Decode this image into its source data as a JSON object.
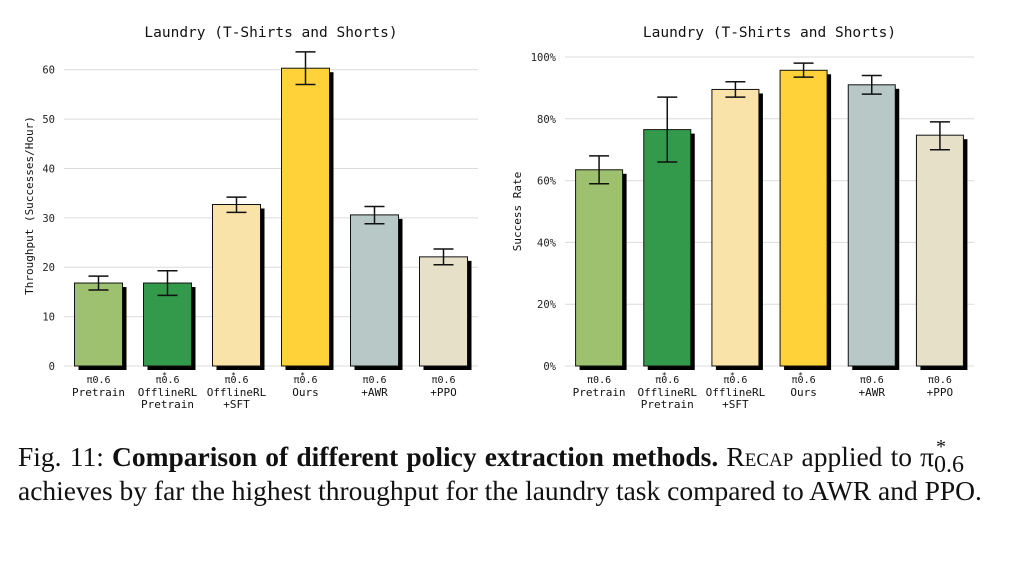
{
  "chart_data": [
    {
      "type": "bar",
      "title": "Laundry (T-Shirts and Shorts)",
      "xlabel": "",
      "ylabel": "Throughput (Successes/Hour)",
      "ylim": [
        0,
        65
      ],
      "yticks": [
        0,
        10,
        20,
        30,
        40,
        50,
        60
      ],
      "ytick_labels": [
        "0",
        "10",
        "20",
        "30",
        "40",
        "50",
        "60"
      ],
      "grid": true,
      "categories": [
        {
          "symbol": "π0.6",
          "star": false,
          "lines": [
            "Pretrain"
          ]
        },
        {
          "symbol": "π0.6",
          "star": true,
          "lines": [
            "OfflineRL",
            "Pretrain"
          ]
        },
        {
          "symbol": "π0.6",
          "star": true,
          "lines": [
            "OfflineRL",
            "+SFT"
          ]
        },
        {
          "symbol": "π0.6",
          "star": true,
          "lines": [
            "Ours"
          ]
        },
        {
          "symbol": "π0.6",
          "star": false,
          "lines": [
            "+AWR"
          ]
        },
        {
          "symbol": "π0.6",
          "star": false,
          "lines": [
            "+PPO"
          ]
        }
      ],
      "values": [
        16.8,
        16.8,
        32.7,
        60.3,
        30.6,
        22.1
      ],
      "err_low": [
        15.4,
        14.3,
        31.1,
        57.0,
        28.8,
        20.5
      ],
      "err_high": [
        18.2,
        19.3,
        34.2,
        63.6,
        32.3,
        23.7
      ],
      "colors": [
        "#9dc16f",
        "#339a4b",
        "#fae3a8",
        "#ffd23a",
        "#b7c8c6",
        "#e6e0c8"
      ]
    },
    {
      "type": "bar",
      "title": "Laundry (T-Shirts and Shorts)",
      "xlabel": "",
      "ylabel": "Success Rate",
      "ylim": [
        0,
        100
      ],
      "yticks": [
        0,
        20,
        40,
        60,
        80,
        100
      ],
      "ytick_labels": [
        "0%",
        "20%",
        "40%",
        "60%",
        "80%",
        "100%"
      ],
      "grid": true,
      "categories": [
        {
          "symbol": "π0.6",
          "star": false,
          "lines": [
            "Pretrain"
          ]
        },
        {
          "symbol": "π0.6",
          "star": true,
          "lines": [
            "OfflineRL",
            "Pretrain"
          ]
        },
        {
          "symbol": "π0.6",
          "star": true,
          "lines": [
            "OfflineRL",
            "+SFT"
          ]
        },
        {
          "symbol": "π0.6",
          "star": true,
          "lines": [
            "Ours"
          ]
        },
        {
          "symbol": "π0.6",
          "star": false,
          "lines": [
            "+AWR"
          ]
        },
        {
          "symbol": "π0.6",
          "star": false,
          "lines": [
            "+PPO"
          ]
        }
      ],
      "values": [
        63.5,
        76.5,
        89.5,
        95.7,
        91.0,
        74.7
      ],
      "err_low": [
        59.0,
        66.0,
        87.0,
        93.5,
        88.0,
        70.0
      ],
      "err_high": [
        68.0,
        87.0,
        92.0,
        98.0,
        94.0,
        79.0
      ],
      "colors": [
        "#9dc16f",
        "#339a4b",
        "#fae3a8",
        "#ffd23a",
        "#b7c8c6",
        "#e6e0c8"
      ]
    }
  ],
  "caption": {
    "label": "Fig. 11:",
    "bold": "Comparison of different policy extraction methods.",
    "recap": "Recap",
    "text_a": "applied to",
    "pi": "π",
    "pi_sup": "*",
    "pi_sub": "0.6",
    "text_b": "achieves by far the highest throughput for the laundry task compared to AWR and PPO."
  }
}
